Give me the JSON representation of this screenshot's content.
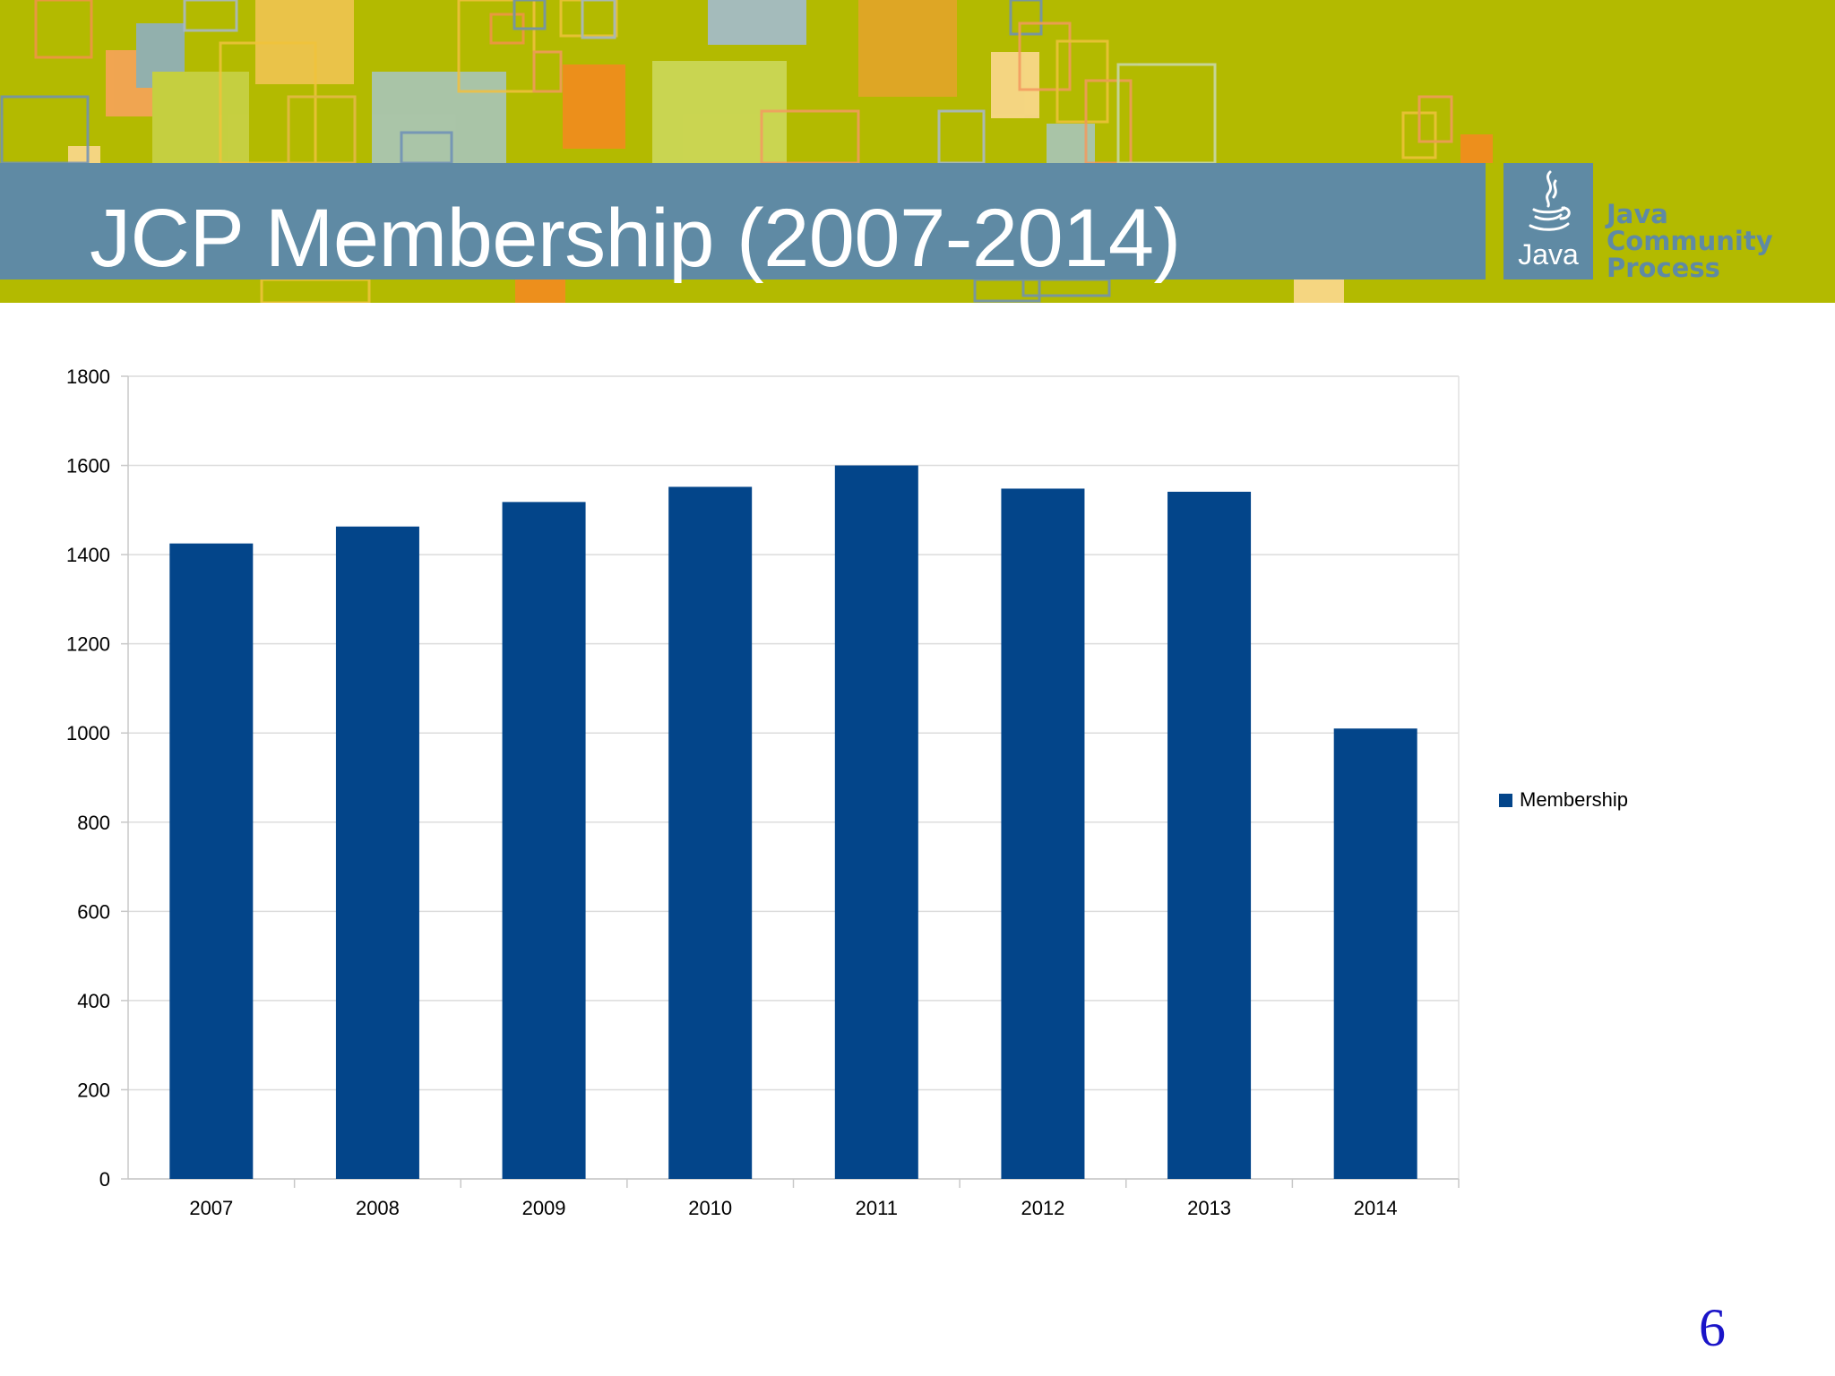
{
  "slide": {
    "title": "JCP Membership (2007-2014)",
    "page_number": "6"
  },
  "logo": {
    "java_label": "Java",
    "wordmark": [
      "Java",
      "Community",
      "Process"
    ],
    "icon": "java-cup-icon"
  },
  "colors": {
    "banner_background": "#b3ba00",
    "title_band": "#5f8aa4",
    "bar": "#03458a",
    "page_number": "#1a14c8"
  },
  "chart_data": {
    "type": "bar",
    "title": "",
    "xlabel": "",
    "ylabel": "",
    "categories": [
      "2007",
      "2008",
      "2009",
      "2010",
      "2011",
      "2012",
      "2013",
      "2014"
    ],
    "series": [
      {
        "name": "Membership",
        "values": [
          1425,
          1463,
          1518,
          1552,
          1600,
          1548,
          1541,
          1010
        ]
      }
    ],
    "ylim": [
      0,
      1800
    ],
    "yticks": [
      "0",
      "200",
      "400",
      "600",
      "800",
      "1000",
      "1200",
      "1400",
      "1600",
      "1800"
    ],
    "grid": true,
    "legend_position": "right"
  }
}
